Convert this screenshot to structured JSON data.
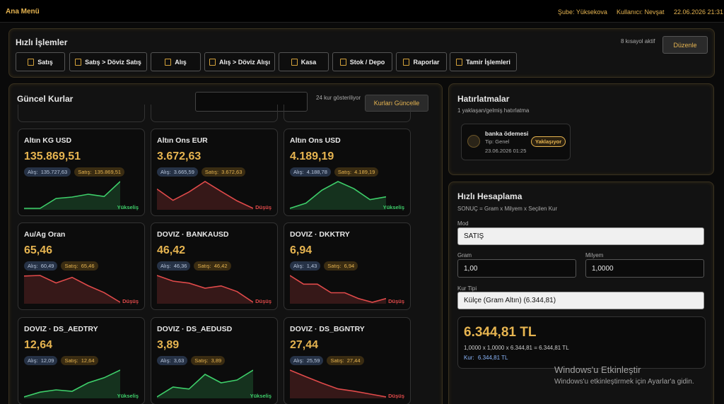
{
  "topbar": {
    "title": "Ana Menü",
    "branch": "Şube: Yüksekova",
    "user": "Kullanıcı: Nevşat",
    "datetime": "22.06.2026 21:31"
  },
  "quick_actions": {
    "title": "Hızlı İşlemler",
    "status": "8 kısayol aktif",
    "edit": "Düzenle",
    "buttons": [
      "Satış",
      "Satış > Döviz Satış",
      "Alış",
      "Alış > Döviz Alışı",
      "Kasa",
      "Stok / Depo",
      "Raporlar",
      "Tamir İşlemleri"
    ]
  },
  "rates": {
    "title": "Güncel Kurlar",
    "count": "24 kur gösteriliyor",
    "update": "Kurları Güncelle",
    "buy_label": "Alış:",
    "sell_label": "Satış:",
    "cards": [
      {
        "name": "Altın KG USD",
        "value": "135.869,51",
        "buy": "135.727,63",
        "sell": "135.869,51",
        "trend": "Yükseliş",
        "color": "#3ecf6a",
        "spark": [
          0,
          0,
          35,
          40,
          50,
          42,
          95
        ]
      },
      {
        "name": "Altın Ons EUR",
        "value": "3.672,63",
        "buy": "3.665,59",
        "sell": "3.672,63",
        "trend": "Düşüş",
        "color": "#e04a4a",
        "spark": [
          70,
          32,
          60,
          95,
          62,
          30,
          5
        ]
      },
      {
        "name": "Altın Ons USD",
        "value": "4.189,19",
        "buy": "4.188,78",
        "sell": "4.189,19",
        "trend": "Yükseliş",
        "color": "#3ecf6a",
        "spark": [
          2,
          20,
          65,
          95,
          70,
          32,
          42
        ]
      },
      {
        "name": "Au/Ag Oran",
        "value": "65,46",
        "buy": "60,49",
        "sell": "65,46",
        "trend": "Düşüş",
        "color": "#e04a4a",
        "spark": [
          95,
          97,
          70,
          90,
          60,
          35,
          0
        ]
      },
      {
        "name": "DOVIZ · BANKAUSD",
        "value": "46,42",
        "buy": "46,36",
        "sell": "46,42",
        "trend": "Düşüş",
        "color": "#e04a4a",
        "spark": [
          95,
          75,
          68,
          50,
          58,
          38,
          0
        ]
      },
      {
        "name": "DOVIZ · DKKTRY",
        "value": "6,94",
        "buy": "1,43",
        "sell": "6,94",
        "trend": "Düşüş",
        "color": "#e04a4a",
        "spark": [
          95,
          65,
          65,
          35,
          35,
          15,
          2,
          15
        ]
      },
      {
        "name": "DOVIZ · DS_AEDTRY",
        "value": "12,64",
        "buy": "12,09",
        "sell": "12,64",
        "trend": "Yükseliş",
        "color": "#3ecf6a",
        "spark": [
          0,
          17,
          25,
          20,
          50,
          68,
          95
        ]
      },
      {
        "name": "DOVIZ · DS_AEDUSD",
        "value": "3,89",
        "buy": "3,63",
        "sell": "3,89",
        "trend": "Yükseliş",
        "color": "#3ecf6a",
        "spark": [
          0,
          35,
          28,
          80,
          50,
          60,
          95
        ]
      },
      {
        "name": "DOVIZ · DS_BGNTRY",
        "value": "27,44",
        "buy": "25,59",
        "sell": "27,44",
        "trend": "Düşüş",
        "color": "#e04a4a",
        "spark": [
          95,
          72,
          50,
          30,
          22,
          12,
          2
        ]
      }
    ]
  },
  "reminders": {
    "title": "Hatırlatmalar",
    "subtitle": "1 yaklaşan/gelmiş hatırlatma",
    "items": [
      {
        "title": "banka ödemesi",
        "type": "Tip: Genel",
        "date": "23.06.2026 01:25",
        "badge": "Yaklaşıyor"
      }
    ]
  },
  "calculator": {
    "title": "Hızlı Hesaplama",
    "subtitle": "SONUÇ = Gram x Milyem x Seçilen Kur",
    "mode_label": "Mod",
    "mode": "SATIŞ",
    "gram_label": "Gram",
    "gram": "1,00",
    "milyem_label": "Milyem",
    "milyem": "1,0000",
    "rate_label": "Kur Tipi",
    "rate": "Külçe (Gram Altın) (6.344,81)",
    "result": "6.344,81 TL",
    "formula": "1,0000 x 1,0000 x 6.344,81 = 6.344,81 TL",
    "rate_text": "Kur:",
    "rate_value": "6.344,81 TL"
  },
  "watermark": {
    "title": "Windows'u Etkinleştir",
    "subtitle": "Windows'u etkinleştirmek için Ayarlar'a gidin."
  }
}
